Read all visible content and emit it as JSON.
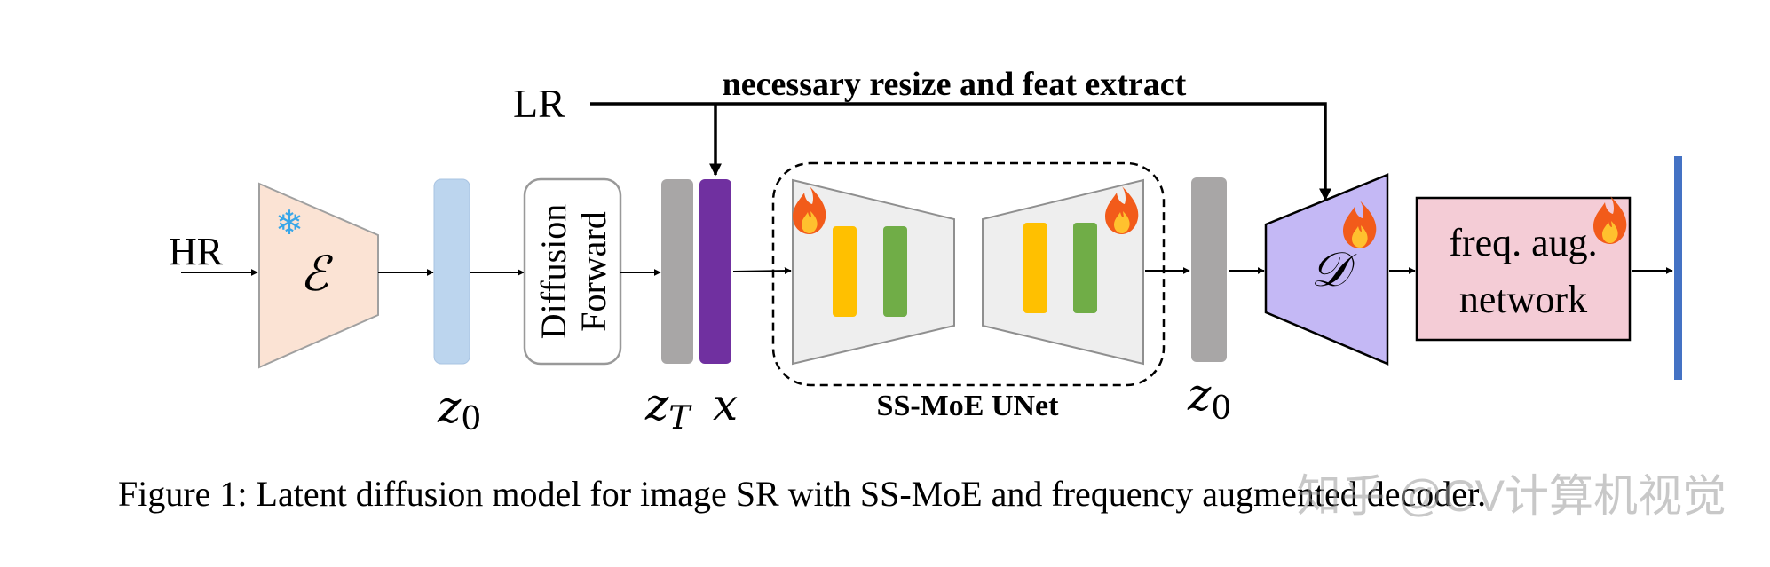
{
  "inputs": {
    "lr": "LR",
    "hr": "HR"
  },
  "top_label": "necessary resize and feat extract",
  "encoder": {
    "symbol": "ℰ",
    "frozen_icon": "❄"
  },
  "diffusion_forward": {
    "line1": "Diffusion",
    "line2": "Forward"
  },
  "latents": {
    "z0_left": {
      "base": "z",
      "sub": "0"
    },
    "zT": {
      "base": "z",
      "sub": "T"
    },
    "x": "x",
    "z0_right": {
      "base": "z",
      "sub": "0"
    }
  },
  "unet": {
    "label": "SS-MoE UNet"
  },
  "decoder": {
    "symbol": "𝒟"
  },
  "freq_network": {
    "line1": "freq. aug.",
    "line2": "network"
  },
  "caption": "Figure 1: Latent diffusion model for image SR with SS-MoE and frequency augmented decoder.",
  "watermark": "知乎 @CV计算机视觉",
  "icons": {
    "trainable": "fire-icon",
    "frozen": "snowflake-icon"
  },
  "colors": {
    "encoder_fill": "#fbe3d4",
    "z0_fill": "#bcd5ee",
    "zT_fill": "#a8a6a6",
    "x_fill": "#7030a0",
    "unet_fill": "#eeeeee",
    "expert_yellow": "#ffc000",
    "expert_green": "#70ad47",
    "decoder_fill": "#c4b8f5",
    "freq_fill": "#f4ccd6",
    "output_bar": "#4472c4"
  }
}
